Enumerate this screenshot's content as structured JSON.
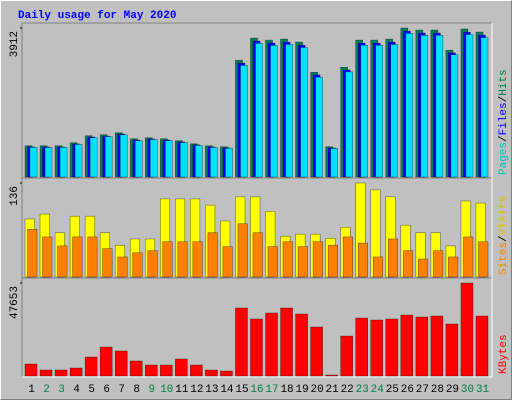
{
  "title": "Daily usage for May 2020",
  "chart_data": [
    {
      "type": "bar",
      "ylim": [
        0,
        3912
      ],
      "yticks": [
        3912
      ],
      "series": [
        {
          "name": "Hits",
          "color": "#00805c",
          "label_color": "#008040",
          "values": [
            819,
            819,
            819,
            899,
            1084,
            1110,
            1163,
            1004,
            1031,
            1004,
            952,
            872,
            819,
            793,
            3066,
            3648,
            3595,
            3621,
            3542,
            2749,
            793,
            2881,
            3595,
            3595,
            3621,
            3912,
            3859,
            3859,
            3330,
            3886,
            3806
          ]
        },
        {
          "name": "Files",
          "color": "#0000ff",
          "label_color": "#0000ff",
          "values": [
            790,
            790,
            790,
            868,
            1050,
            1075,
            1128,
            972,
            1000,
            972,
            922,
            845,
            790,
            766,
            2990,
            3570,
            3515,
            3540,
            3460,
            2680,
            765,
            2810,
            3515,
            3515,
            3540,
            3830,
            3780,
            3780,
            3260,
            3800,
            3725
          ]
        },
        {
          "name": "Pages",
          "color": "#00e0ff",
          "label_color": "#00c0c0",
          "values": [
            780,
            775,
            780,
            855,
            1030,
            1060,
            1110,
            955,
            985,
            955,
            905,
            830,
            775,
            755,
            2930,
            3510,
            3455,
            3480,
            3400,
            2620,
            750,
            2760,
            3460,
            3460,
            3480,
            3770,
            3720,
            3720,
            3210,
            3740,
            3660
          ]
        }
      ]
    },
    {
      "type": "bar",
      "ylim": [
        0,
        136
      ],
      "yticks": [
        136
      ],
      "series": [
        {
          "name": "Visits",
          "color": "#ffff00",
          "label_color": "#e0c000",
          "values": [
            84,
            91,
            64,
            88,
            88,
            64,
            46,
            55,
            55,
            113,
            113,
            113,
            104,
            81,
            116,
            116,
            95,
            59,
            62,
            62,
            56,
            72,
            136,
            126,
            116,
            75,
            64,
            64,
            45,
            110,
            107
          ]
        },
        {
          "name": "Sites",
          "color": "#ff8000",
          "label_color": "#ff8000",
          "values": [
            69,
            58,
            45,
            58,
            58,
            41,
            29,
            35,
            38,
            51,
            51,
            51,
            64,
            44,
            77,
            64,
            44,
            51,
            44,
            51,
            46,
            58,
            49,
            29,
            55,
            38,
            26,
            38,
            29,
            58,
            51
          ]
        }
      ]
    },
    {
      "type": "bar",
      "ylim": [
        0,
        47653
      ],
      "yticks": [
        47653
      ],
      "categories": [
        "1",
        "2",
        "3",
        "4",
        "5",
        "6",
        "7",
        "8",
        "9",
        "10",
        "11",
        "12",
        "13",
        "14",
        "15",
        "16",
        "17",
        "18",
        "19",
        "20",
        "21",
        "22",
        "23",
        "24",
        "25",
        "26",
        "27",
        "28",
        "29",
        "30",
        "31"
      ],
      "category_colors": [
        "#000000",
        "#008040",
        "#008040",
        "#000000",
        "#000000",
        "#000000",
        "#000000",
        "#000000",
        "#008040",
        "#008040",
        "#000000",
        "#000000",
        "#000000",
        "#000000",
        "#000000",
        "#008040",
        "#008040",
        "#000000",
        "#000000",
        "#000000",
        "#000000",
        "#000000",
        "#008040",
        "#008040",
        "#000000",
        "#000000",
        "#000000",
        "#000000",
        "#000000",
        "#008040",
        "#008040"
      ],
      "series": [
        {
          "name": "KBytes",
          "color": "#ff0000",
          "label_color": "#ff0000",
          "values": [
            6149,
            3074,
            3074,
            4099,
            9736,
            14860,
            12810,
            7686,
            5636,
            5636,
            8711,
            5636,
            3074,
            2562,
            34843,
            29207,
            32281,
            34843,
            31769,
            25107,
            512,
            20496,
            29719,
            28694,
            29207,
            31256,
            30231,
            30743,
            26644,
            47653,
            30743
          ]
        }
      ]
    }
  ]
}
